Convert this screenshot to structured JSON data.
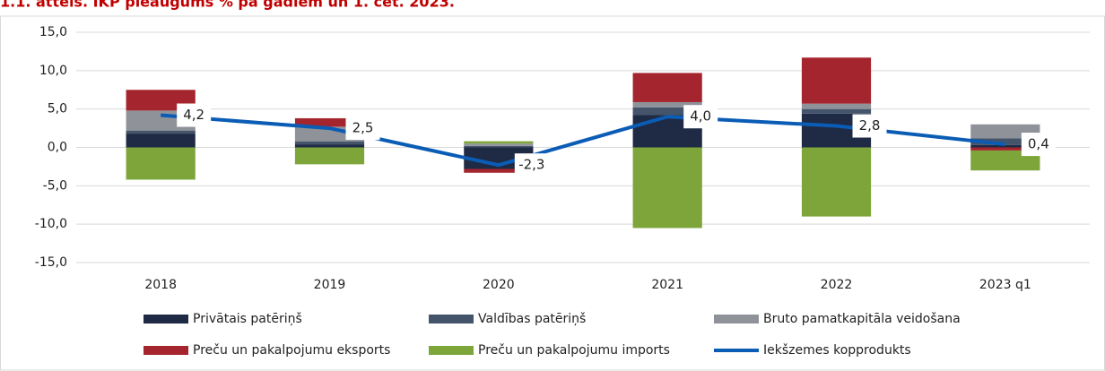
{
  "chart_data": {
    "type": "stacked-bar-line",
    "title": "1.1. attēls. IKP pieaugums % pa gadiem un 1. cet. 2023.",
    "categories": [
      "2018",
      "2019",
      "2020",
      "2021",
      "2022",
      "2023 q1"
    ],
    "series": [
      {
        "name": "Privātais patēriņš",
        "color": "#1f2a44",
        "values": [
          1.8,
          0.4,
          -2.8,
          4.2,
          4.4,
          0.3
        ]
      },
      {
        "name": "Valdības patēriņš",
        "color": "#44546a",
        "values": [
          0.4,
          0.4,
          0.2,
          1.0,
          0.6,
          0.9
        ]
      },
      {
        "name": "Bruto pamatkapitāla veidošana",
        "color": "#8f9399",
        "values": [
          2.6,
          1.9,
          0.3,
          0.7,
          0.7,
          1.8
        ]
      },
      {
        "name": "Preču un pakalpojumu eksports",
        "color": "#a5252f",
        "values": [
          2.7,
          1.1,
          -0.5,
          3.8,
          6.0,
          -0.4
        ]
      },
      {
        "name": "Preču un pakalpojumu imports",
        "color": "#7ea53a",
        "values": [
          -4.2,
          -2.2,
          0.3,
          -10.5,
          -9.0,
          -2.6
        ]
      },
      {
        "name": "Iekšzemes kopprodukts",
        "color": "#0a5cb5",
        "type": "line",
        "values": [
          4.2,
          2.5,
          -2.3,
          4.0,
          2.8,
          0.4
        ],
        "value_labels": [
          "4,2",
          "2,5",
          "-2,3",
          "4,0",
          "2,8",
          "0,4"
        ]
      }
    ],
    "ylim": [
      -15,
      15
    ],
    "yticks": [
      {
        "value": -15,
        "label": "-15,0"
      },
      {
        "value": -10,
        "label": "-10,0"
      },
      {
        "value": -5,
        "label": "-5,0"
      },
      {
        "value": 0,
        "label": "0,0"
      },
      {
        "value": 5,
        "label": "5,0"
      },
      {
        "value": 10,
        "label": "10,0"
      },
      {
        "value": 15,
        "label": "15,0"
      }
    ],
    "grid": true
  }
}
